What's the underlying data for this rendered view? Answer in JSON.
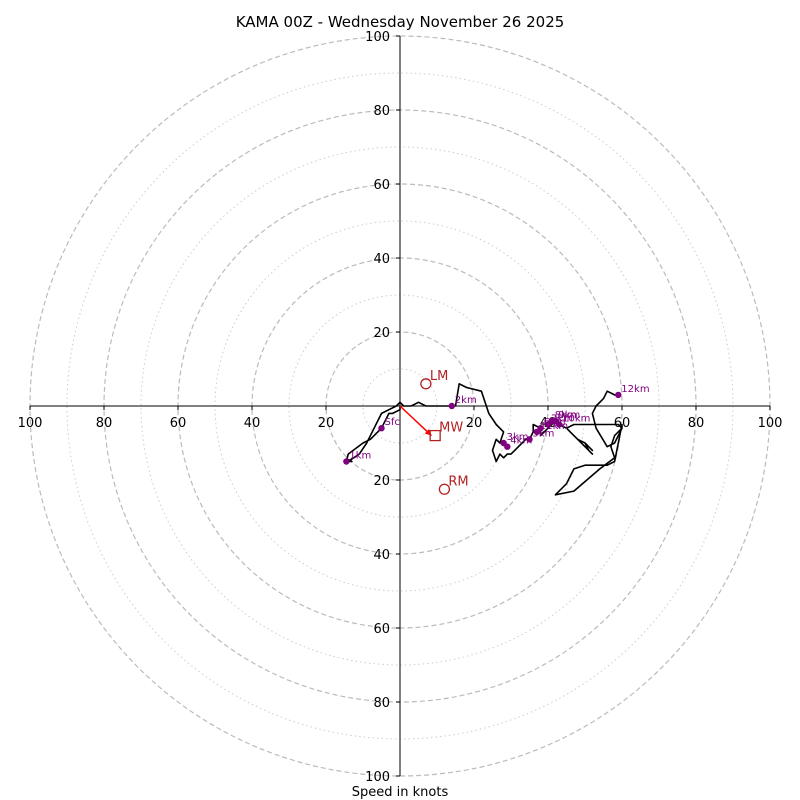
{
  "chart_data": {
    "type": "hodograph",
    "title": "KAMA 00Z - Wednesday November 26 2025",
    "xlabel": "Speed in knots",
    "units": "knots",
    "range": [
      -100,
      100
    ],
    "ring_major": [
      20,
      40,
      60,
      80,
      100
    ],
    "ring_minor": [
      10,
      30,
      50,
      70,
      90
    ],
    "x_tick_labels": [
      "100",
      "80",
      "60",
      "40",
      "20",
      "20",
      "40",
      "60",
      "80",
      "100"
    ],
    "y_tick_labels_top": [
      "20",
      "40",
      "60",
      "80",
      "100"
    ],
    "y_tick_labels_bottom": [
      "20",
      "40",
      "60",
      "80",
      "100"
    ],
    "colors": {
      "trace": "#000000",
      "points": "#800080",
      "motion": "#b22222",
      "arrow": "#ff0000",
      "grid": "#bbbbbb",
      "axis": "#000000"
    },
    "trace": [
      [
        0,
        0
      ],
      [
        0,
        -1
      ],
      [
        -2,
        -2
      ],
      [
        -3,
        -2
      ],
      [
        -5,
        -6
      ],
      [
        -8,
        -9
      ],
      [
        -10,
        -10
      ],
      [
        -14,
        -13
      ],
      [
        -14.5,
        -15
      ],
      [
        -13,
        -15
      ],
      [
        -14,
        -14.5
      ],
      [
        -14,
        -15
      ],
      [
        -11,
        -13
      ],
      [
        -9,
        -10
      ],
      [
        -7,
        -6
      ],
      [
        -5,
        -2
      ],
      [
        -3,
        -1
      ],
      [
        -1,
        0
      ],
      [
        0,
        1
      ],
      [
        1,
        0
      ],
      [
        3,
        0
      ],
      [
        5,
        1
      ],
      [
        7,
        0
      ],
      [
        10,
        0
      ],
      [
        14,
        0
      ],
      [
        15,
        0
      ],
      [
        16,
        6
      ],
      [
        18,
        5
      ],
      [
        22,
        4
      ],
      [
        24,
        -2
      ],
      [
        26,
        -5
      ],
      [
        28,
        -7
      ],
      [
        27,
        -10
      ],
      [
        26,
        -9
      ],
      [
        25,
        -12
      ],
      [
        26,
        -15
      ],
      [
        27,
        -13
      ],
      [
        28,
        -14
      ],
      [
        29,
        -13
      ],
      [
        30,
        -13
      ],
      [
        31,
        -12
      ],
      [
        32,
        -11
      ],
      [
        33,
        -10
      ],
      [
        34,
        -9
      ],
      [
        35,
        -9
      ],
      [
        36,
        -7
      ],
      [
        36,
        -5
      ],
      [
        38,
        -6
      ],
      [
        38,
        -8
      ],
      [
        40,
        -6
      ],
      [
        41,
        -5
      ],
      [
        42,
        -4
      ],
      [
        43,
        -5
      ],
      [
        45,
        -6
      ],
      [
        46,
        -7
      ],
      [
        48,
        -9
      ],
      [
        50,
        -10
      ],
      [
        52,
        -12
      ],
      [
        50,
        -10
      ],
      [
        51,
        -12
      ],
      [
        52,
        -13
      ],
      [
        50,
        -11
      ],
      [
        45,
        -6
      ],
      [
        47,
        -5
      ],
      [
        51,
        -5
      ],
      [
        55,
        -5
      ],
      [
        59,
        -5
      ],
      [
        60,
        -6
      ],
      [
        58,
        -8
      ],
      [
        57,
        -11
      ],
      [
        58,
        -14
      ],
      [
        54,
        -17
      ],
      [
        47,
        -23
      ],
      [
        42,
        -24
      ],
      [
        45,
        -21
      ],
      [
        47,
        -17
      ],
      [
        50,
        -16
      ],
      [
        56,
        -16
      ],
      [
        58,
        -15
      ],
      [
        60,
        -5
      ],
      [
        60,
        -6
      ],
      [
        59,
        -8
      ],
      [
        58,
        -10
      ],
      [
        56,
        -11
      ],
      [
        53,
        -6
      ],
      [
        52,
        -2
      ],
      [
        53,
        0
      ],
      [
        55,
        2
      ],
      [
        56,
        4
      ],
      [
        58,
        3
      ],
      [
        59,
        3
      ]
    ],
    "height_points": [
      {
        "label": "Sfc",
        "u": -5,
        "v": -6
      },
      {
        "label": "1km",
        "u": -14.5,
        "v": -15
      },
      {
        "label": "2km",
        "u": 14,
        "v": 0
      },
      {
        "label": "3km",
        "u": 28,
        "v": -10
      },
      {
        "label": "4km",
        "u": 29,
        "v": -11
      },
      {
        "label": "5km",
        "u": 35,
        "v": -9
      },
      {
        "label": "6km",
        "u": 38,
        "v": -6
      },
      {
        "label": "7km",
        "u": 40,
        "v": -5
      },
      {
        "label": "8km",
        "u": 41,
        "v": -4
      },
      {
        "label": "9km",
        "u": 42,
        "v": -4
      },
      {
        "label": "10km",
        "u": 43,
        "v": -5
      },
      {
        "label": "11km",
        "u": 37,
        "v": -7
      },
      {
        "label": "12km",
        "u": 59,
        "v": 3
      }
    ],
    "storm_motion": [
      {
        "label": "LM",
        "u": 7,
        "v": 6,
        "marker": "circle"
      },
      {
        "label": "MW",
        "u": 9.5,
        "v": -8,
        "marker": "square"
      },
      {
        "label": "RM",
        "u": 12,
        "v": -22.5,
        "marker": "circle"
      }
    ],
    "shear_arrow": {
      "from": [
        0,
        0
      ],
      "to": [
        8.5,
        -8
      ]
    }
  }
}
